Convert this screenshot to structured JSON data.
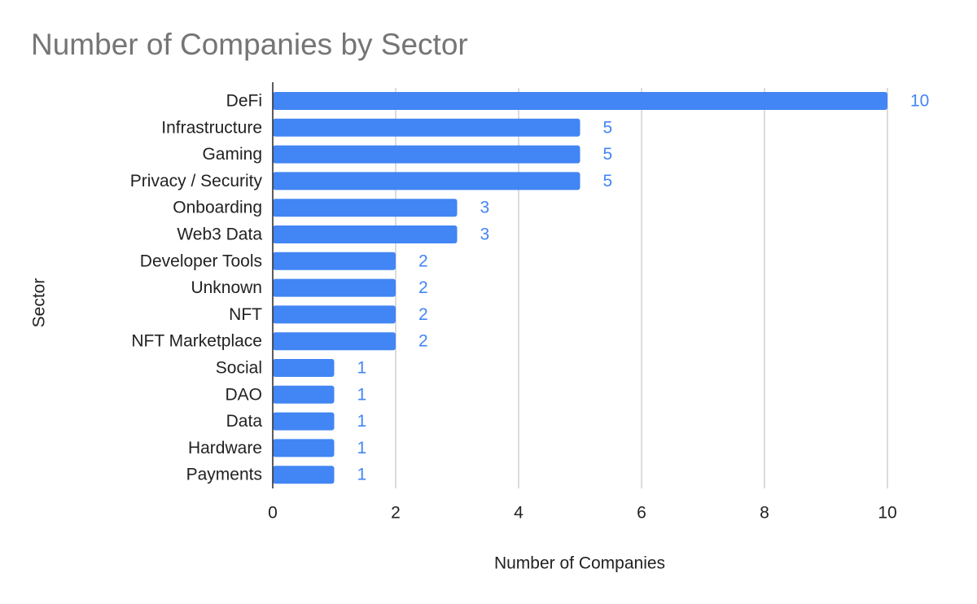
{
  "chart_data": {
    "type": "bar",
    "orientation": "horizontal",
    "title": "Number of Companies by Sector",
    "xlabel": "Number of Companies",
    "ylabel": "Sector",
    "categories": [
      "DeFi",
      "Infrastructure",
      "Gaming",
      "Privacy / Security",
      "Onboarding",
      "Web3 Data",
      "Developer Tools",
      "Unknown",
      "NFT",
      "NFT Marketplace",
      "Social",
      "DAO",
      "Data",
      "Hardware",
      "Payments"
    ],
    "values": [
      10,
      5,
      5,
      5,
      3,
      3,
      2,
      2,
      2,
      2,
      1,
      1,
      1,
      1,
      1
    ],
    "xlim": [
      0,
      10
    ],
    "xticks": [
      0,
      2,
      4,
      6,
      8,
      10
    ],
    "grid": true,
    "data_labels": true,
    "legend": "none",
    "colors": {
      "bar": "#4285f4",
      "data_label": "#4285f4",
      "title": "#757575",
      "grid": "#cccccc",
      "axis": "#333333",
      "text": "#222222"
    }
  }
}
